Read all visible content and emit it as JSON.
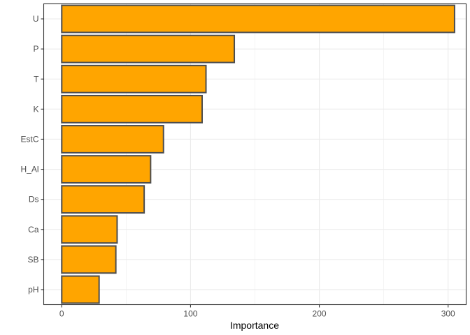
{
  "chart_data": {
    "type": "bar",
    "orientation": "horizontal",
    "title": "",
    "xlabel": "Importance",
    "ylabel": "",
    "categories": [
      "U",
      "P",
      "T",
      "K",
      "EstC",
      "H_Al",
      "Ds",
      "Ca",
      "SB",
      "pH"
    ],
    "values": [
      305,
      134,
      112,
      109,
      79,
      69,
      64,
      43,
      42,
      29
    ],
    "xlim": [
      -14,
      314
    ],
    "xticks": [
      0,
      100,
      200,
      300
    ],
    "xtick_labels": [
      "0",
      "100",
      "200",
      "300"
    ],
    "grid": true,
    "legend": "none",
    "bar_fill": "#FFA500",
    "bar_outline": "#4D4D4D",
    "grid_color": "#EBEBEB",
    "panel_border": "#333333"
  }
}
